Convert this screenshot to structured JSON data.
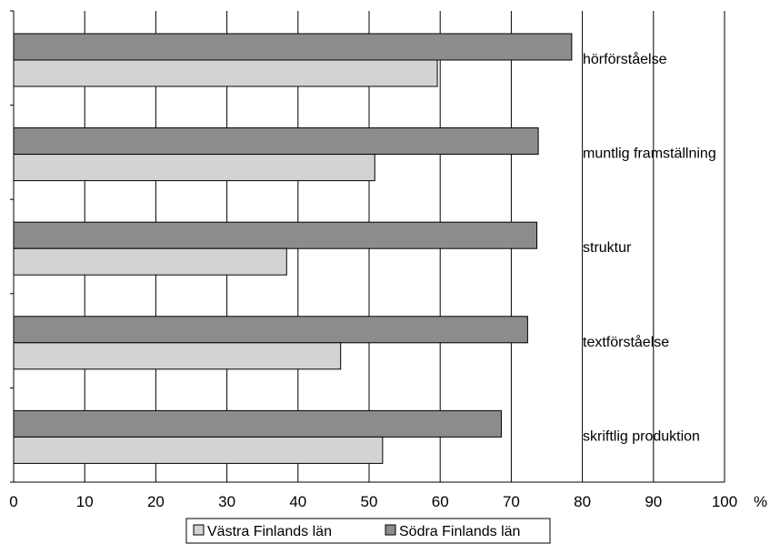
{
  "chart_data": {
    "type": "bar",
    "orientation": "horizontal",
    "categories": [
      "hörförståelse",
      "muntlig framställning",
      "struktur",
      "textförståelse",
      "skriftlig produktion"
    ],
    "series": [
      {
        "name": "Södra Finlands län",
        "values": [
          78.5,
          73.8,
          73.6,
          72.3,
          68.6
        ],
        "color": "#8c8c8c"
      },
      {
        "name": "Västra Finlands län",
        "values": [
          59.6,
          50.8,
          38.4,
          46.0,
          51.9
        ],
        "color": "#d3d3d3"
      }
    ],
    "xlim": [
      0,
      100
    ],
    "xticks": [
      "0",
      "10",
      "20",
      "30",
      "40",
      "50",
      "60",
      "70",
      "80",
      "90",
      "100"
    ],
    "xunit": "%",
    "grid": true,
    "legend": [
      "Västra Finlands län",
      "Södra Finlands län"
    ],
    "legend_position": "bottom"
  }
}
